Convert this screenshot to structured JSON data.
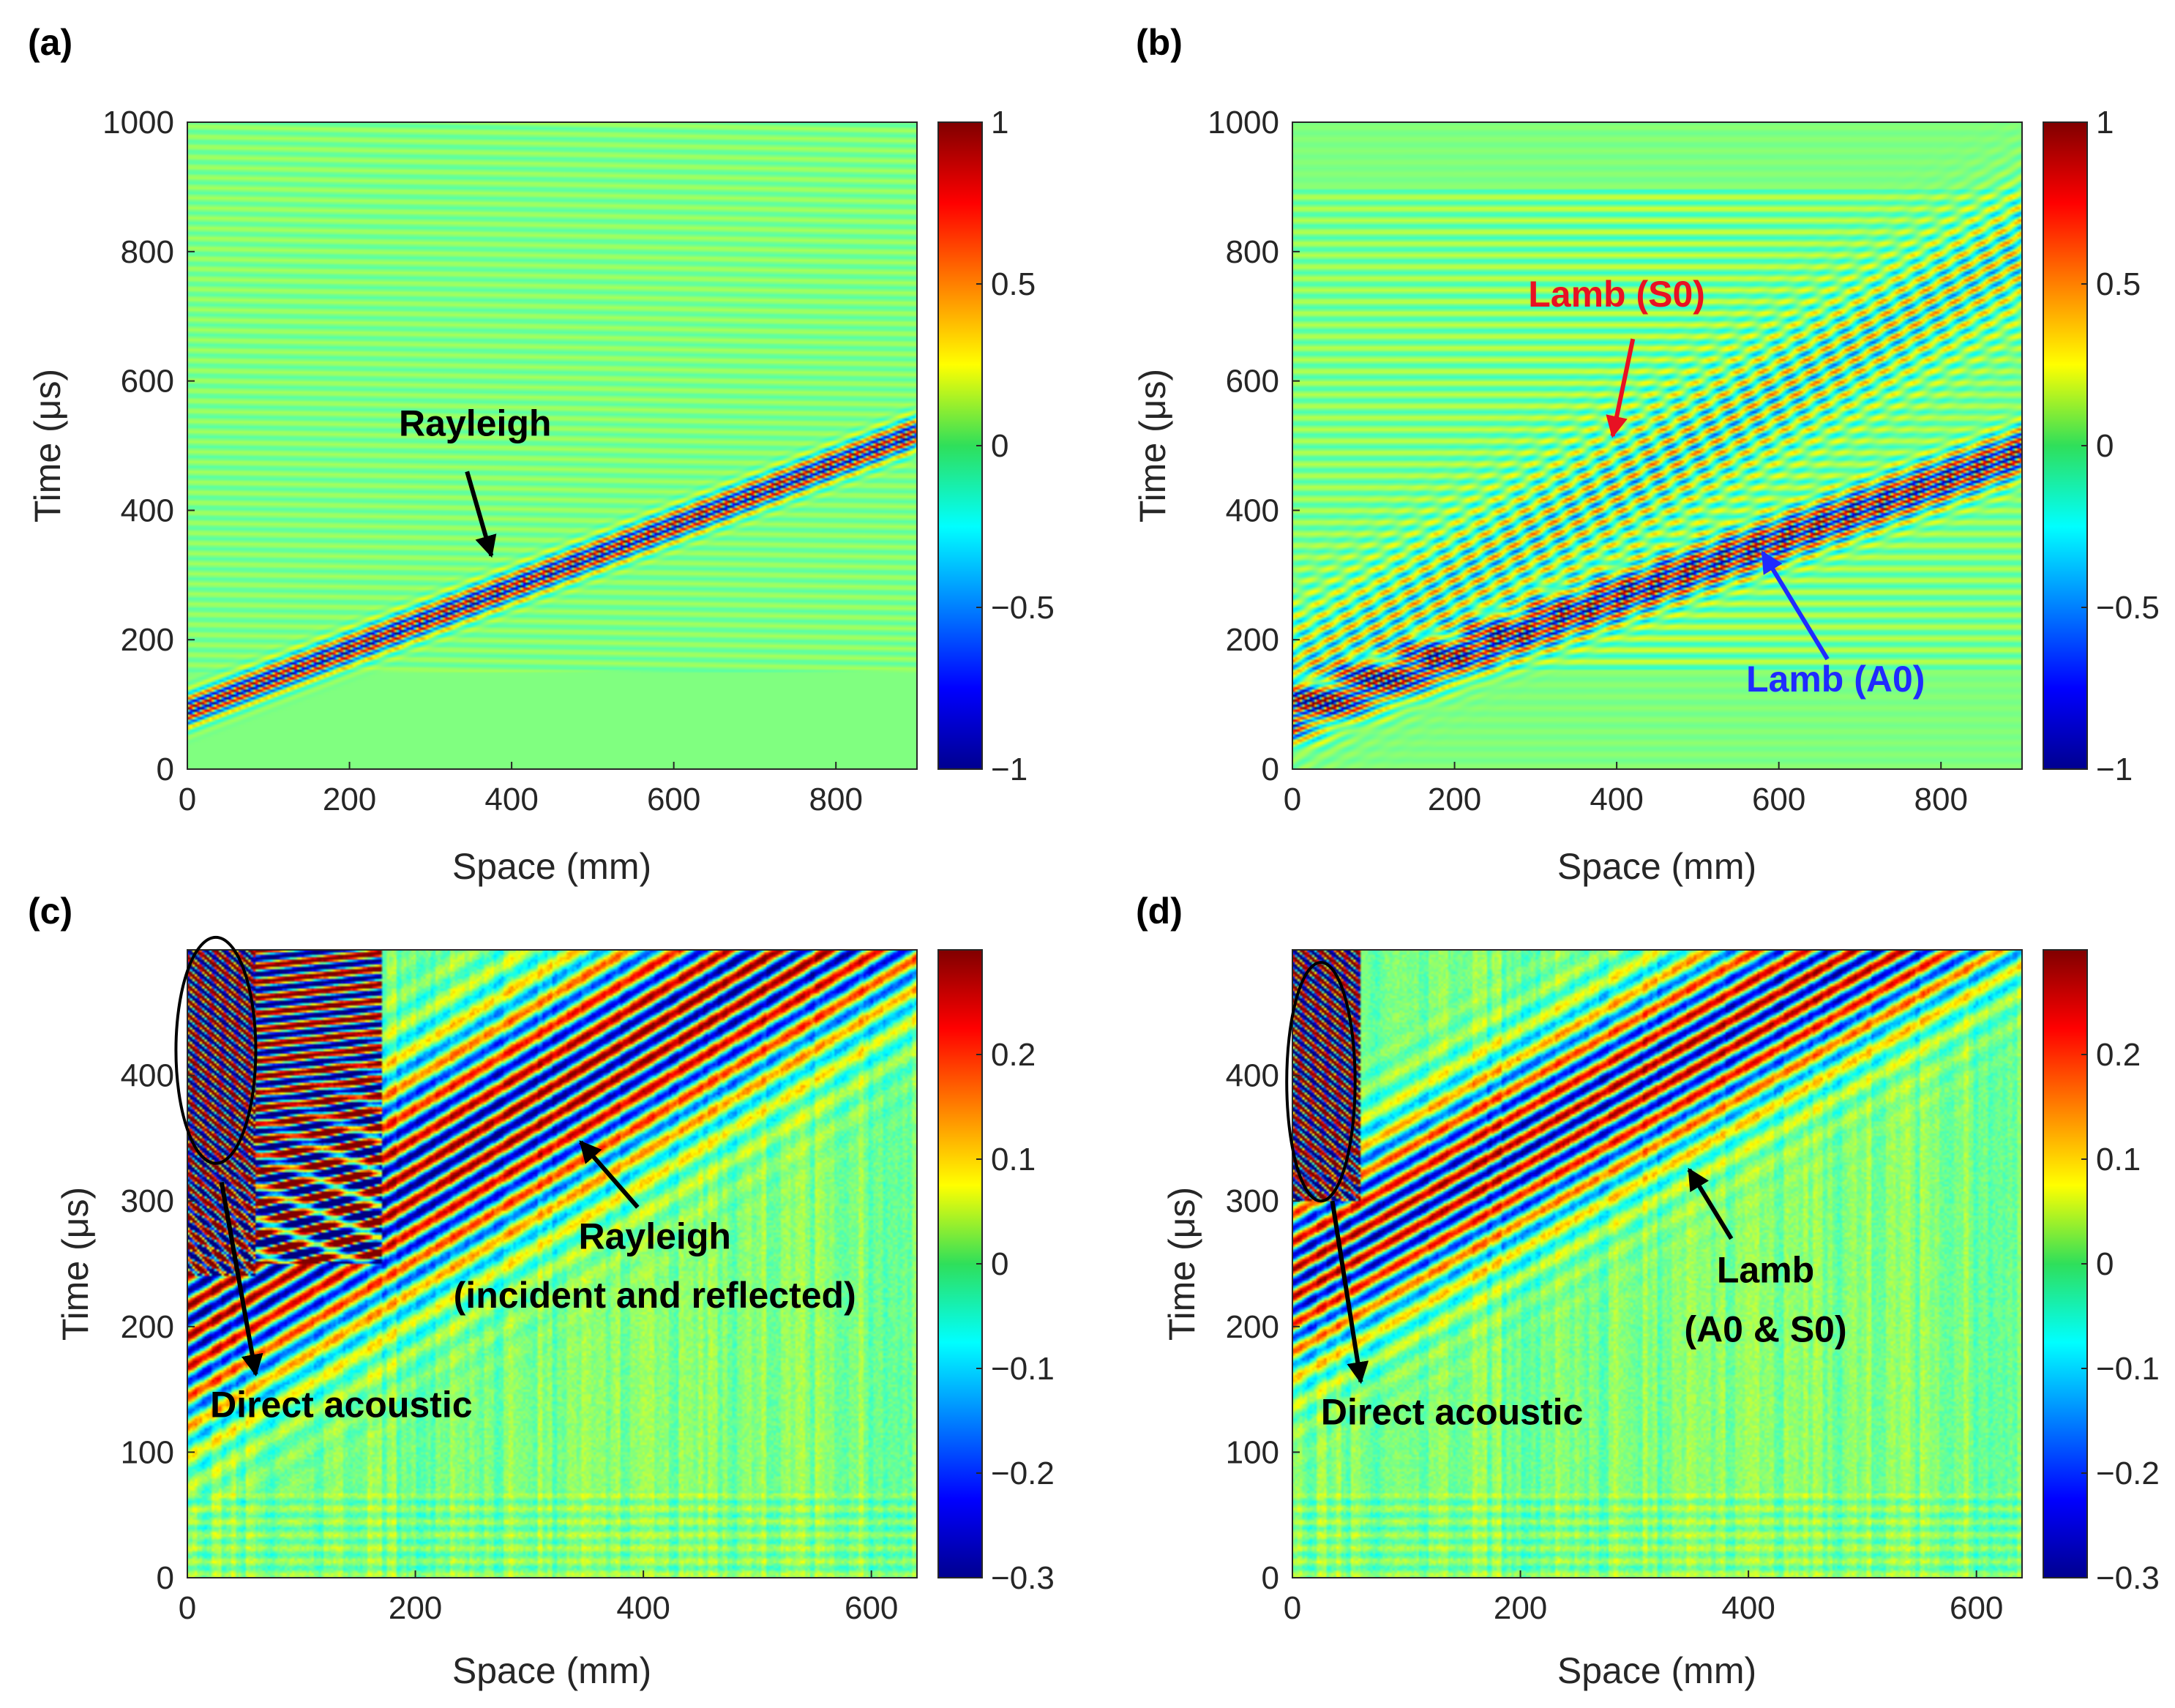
{
  "chart_data": [
    {
      "type": "heatmap",
      "panel_label": "(a)",
      "xlabel": "Space (mm)",
      "ylabel": "Time (μs)",
      "xlim": [
        0,
        900
      ],
      "ylim": [
        0,
        1000
      ],
      "xticks": [
        0,
        200,
        400,
        600,
        800
      ],
      "yticks": [
        0,
        200,
        400,
        600,
        800,
        1000
      ],
      "colorbar": {
        "limits": [
          -1,
          1
        ],
        "ticks": [
          -1,
          -0.5,
          0,
          0.5,
          1
        ],
        "tick_labels": [
          "−1",
          "−0.5",
          "0",
          "0.5",
          "1"
        ]
      },
      "colormap": "jet",
      "wavefronts": [
        {
          "name": "Rayleigh",
          "t0": 90,
          "t_end": 520,
          "amplitude": 1.0,
          "width": 14,
          "cycles": 4
        }
      ],
      "annotations": [
        {
          "text": "Rayleigh",
          "color": "#000000",
          "text_at": [
            355,
            515
          ],
          "arrow_from": [
            345,
            460
          ],
          "arrow_to": [
            375,
            330
          ]
        }
      ]
    },
    {
      "type": "heatmap",
      "panel_label": "(b)",
      "xlabel": "Space (mm)",
      "ylabel": "Time (μs)",
      "xlim": [
        0,
        900
      ],
      "ylim": [
        0,
        1000
      ],
      "xticks": [
        0,
        200,
        400,
        600,
        800
      ],
      "yticks": [
        0,
        200,
        400,
        600,
        800,
        1000
      ],
      "colorbar": {
        "limits": [
          -1,
          1
        ],
        "ticks": [
          -1,
          -0.5,
          0,
          0.5,
          1
        ],
        "tick_labels": [
          "−1",
          "−0.5",
          "0",
          "0.5",
          "1"
        ]
      },
      "colormap": "jet",
      "wavefronts": [
        {
          "name": "Lamb (A0)",
          "t0": 85,
          "t_end": 490,
          "amplitude": 1.0,
          "width": 22,
          "cycles": 6
        },
        {
          "name": "Lamb (S0)",
          "t0": 140,
          "t_end": 800,
          "amplitude": 0.45,
          "width": 60,
          "cycles": 12
        }
      ],
      "annotations": [
        {
          "text": "Lamb (S0)",
          "color": "#e81123",
          "text_at": [
            400,
            715
          ],
          "arrow_from": [
            420,
            665
          ],
          "arrow_to": [
            395,
            515
          ]
        },
        {
          "text": "Lamb (A0)",
          "color": "#1f2bff",
          "text_at": [
            670,
            120
          ],
          "arrow_from": [
            660,
            170
          ],
          "arrow_to": [
            580,
            335
          ]
        }
      ]
    },
    {
      "type": "heatmap",
      "panel_label": "(c)",
      "xlabel": "Space (mm)",
      "ylabel": "Time (μs)",
      "xlim": [
        0,
        640
      ],
      "ylim": [
        0,
        500
      ],
      "xticks": [
        0,
        200,
        400,
        600
      ],
      "yticks": [
        0,
        100,
        200,
        300,
        400
      ],
      "colorbar": {
        "limits": [
          -0.3,
          0.3
        ],
        "ticks": [
          -0.3,
          -0.2,
          -0.1,
          0,
          0.1,
          0.2
        ],
        "tick_labels": [
          "−0.3",
          "−0.2",
          "−0.1",
          "0",
          "0.1",
          "0.2"
        ]
      },
      "colormap": "jet",
      "wavefronts": [
        {
          "name": "Rayleigh",
          "t0": 210,
          "t_end": 560,
          "amplitude": 0.3,
          "width": 55,
          "cycles": 10
        }
      ],
      "annotations": [
        {
          "text": "Rayleigh",
          "color": "#000000",
          "text_at": [
            410,
            262
          ],
          "arrow_from": [
            395,
            295
          ],
          "arrow_to": [
            345,
            347
          ]
        },
        {
          "text": "(incident and reflected)",
          "color": "#000000",
          "text_at": [
            410,
            215
          ]
        },
        {
          "text": "Direct acoustic",
          "color": "#000000",
          "text_at": [
            135,
            128
          ],
          "arrow_from": [
            30,
            315
          ],
          "arrow_to": [
            60,
            162
          ]
        }
      ],
      "ellipse": {
        "center": [
          25,
          420
        ],
        "radius": [
          35,
          90
        ]
      }
    },
    {
      "type": "heatmap",
      "panel_label": "(d)",
      "xlabel": "Space (mm)",
      "ylabel": "Time (μs)",
      "xlim": [
        0,
        640
      ],
      "ylim": [
        0,
        500
      ],
      "xticks": [
        0,
        200,
        400,
        600
      ],
      "yticks": [
        0,
        100,
        200,
        300,
        400
      ],
      "colorbar": {
        "limits": [
          -0.3,
          0.3
        ],
        "ticks": [
          -0.3,
          -0.2,
          -0.1,
          0,
          0.1,
          0.2
        ],
        "tick_labels": [
          "−0.3",
          "−0.2",
          "−0.1",
          "0",
          "0.1",
          "0.2"
        ]
      },
      "colormap": "jet",
      "wavefronts": [
        {
          "name": "Lamb (A0 & S0)",
          "t0": 240,
          "t_end": 570,
          "amplitude": 0.28,
          "width": 45,
          "cycles": 9
        }
      ],
      "annotations": [
        {
          "text": "Lamb",
          "color": "#000000",
          "text_at": [
            415,
            235
          ],
          "arrow_from": [
            385,
            270
          ],
          "arrow_to": [
            348,
            325
          ]
        },
        {
          "text": "(A0 & S0)",
          "color": "#000000",
          "text_at": [
            415,
            188
          ]
        },
        {
          "text": "Direct acoustic",
          "color": "#000000",
          "text_at": [
            140,
            122
          ],
          "arrow_from": [
            35,
            300
          ],
          "arrow_to": [
            60,
            156
          ]
        }
      ],
      "ellipse": {
        "center": [
          25,
          395
        ],
        "radius": [
          30,
          95
        ]
      }
    }
  ]
}
